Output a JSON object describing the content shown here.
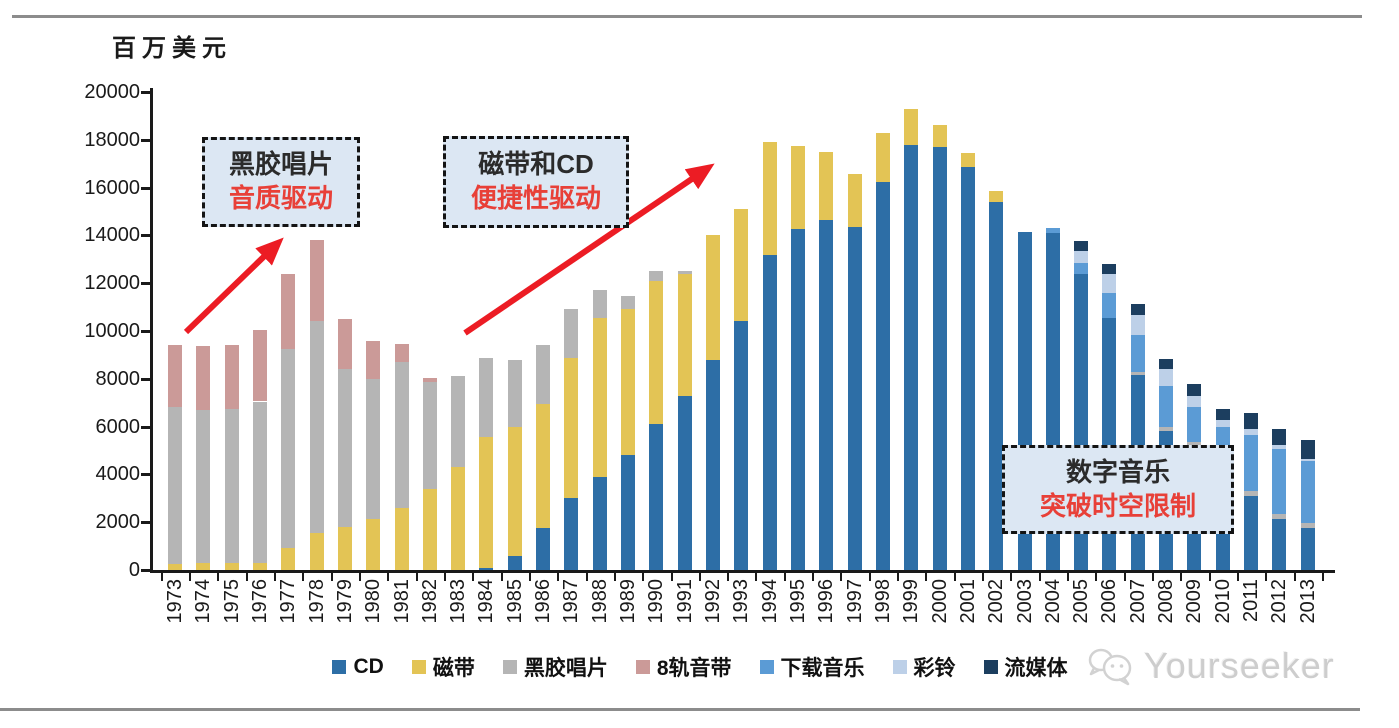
{
  "page": {
    "unit_label": "百万美元",
    "watermark": "Yourseeker"
  },
  "annotations": [
    {
      "line1": "黑胶唱片",
      "line2": "音质驱动"
    },
    {
      "line1": "磁带和CD",
      "line2": "便捷性驱动"
    },
    {
      "line1": "数字音乐",
      "line2": "突破时空限制"
    }
  ],
  "arrow_color": "#ec1c24",
  "chart_data": {
    "type": "bar",
    "stacked": true,
    "title": "",
    "xlabel": "",
    "ylabel": "百万美元",
    "ylim": [
      0,
      20000
    ],
    "ytick_step": 2000,
    "grid": false,
    "legend_position": "bottom",
    "categories": [
      "1973",
      "1974",
      "1975",
      "1976",
      "1977",
      "1978",
      "1979",
      "1980",
      "1981",
      "1982",
      "1983",
      "1984",
      "1985",
      "1986",
      "1987",
      "1988",
      "1989",
      "1990",
      "1991",
      "1992",
      "1993",
      "1994",
      "1995",
      "1996",
      "1997",
      "1998",
      "1999",
      "2000",
      "2001",
      "2002",
      "2003",
      "2004",
      "2005",
      "2006",
      "2007",
      "2008",
      "2009",
      "2010",
      "2011",
      "2012",
      "2013"
    ],
    "series": [
      {
        "name": "CD",
        "color": "#2d6ea6",
        "values": [
          0,
          0,
          0,
          0,
          0,
          0,
          0,
          0,
          0,
          0,
          0,
          100,
          600,
          1750,
          3000,
          3900,
          4800,
          6100,
          7300,
          8800,
          10400,
          13200,
          14250,
          14650,
          14350,
          16250,
          17800,
          17700,
          16850,
          15400,
          14150,
          14100,
          12400,
          10550,
          8150,
          5800,
          5200,
          3950,
          3100,
          2150,
          1750
        ]
      },
      {
        "name": "磁带",
        "color": "#e3c455",
        "values": [
          250,
          280,
          300,
          300,
          900,
          1550,
          1800,
          2150,
          2600,
          3400,
          4300,
          5450,
          5400,
          5200,
          5850,
          6650,
          6100,
          6000,
          5100,
          5200,
          4700,
          4700,
          3500,
          2850,
          2200,
          2050,
          1500,
          900,
          600,
          450,
          0,
          0,
          0,
          0,
          0,
          0,
          0,
          0,
          0,
          0,
          0
        ]
      },
      {
        "name": "黑胶唱片",
        "color": "#b5b5b5",
        "values": [
          6550,
          6400,
          6450,
          6750,
          8350,
          8850,
          6600,
          5850,
          6100,
          4450,
          3800,
          3300,
          2800,
          2450,
          2050,
          1150,
          550,
          400,
          100,
          0,
          0,
          0,
          0,
          0,
          0,
          0,
          0,
          0,
          0,
          0,
          0,
          0,
          0,
          0,
          150,
          170,
          150,
          170,
          200,
          210,
          200
        ]
      },
      {
        "name": "8轨音带",
        "color": "#cb9a98",
        "values": [
          2600,
          2700,
          2650,
          3000,
          3150,
          3400,
          2100,
          1600,
          750,
          200,
          0,
          0,
          0,
          0,
          0,
          0,
          0,
          0,
          0,
          0,
          0,
          0,
          0,
          0,
          0,
          0,
          0,
          0,
          0,
          0,
          0,
          0,
          0,
          0,
          0,
          0,
          0,
          0,
          0,
          0,
          0
        ]
      },
      {
        "name": "下载音乐",
        "color": "#5b9bd5",
        "values": [
          0,
          0,
          0,
          0,
          0,
          0,
          0,
          0,
          0,
          0,
          0,
          0,
          0,
          0,
          0,
          0,
          0,
          0,
          0,
          0,
          0,
          0,
          0,
          0,
          0,
          0,
          0,
          0,
          0,
          0,
          0,
          200,
          450,
          1050,
          1530,
          1740,
          1460,
          1880,
          2350,
          2700,
          2600
        ]
      },
      {
        "name": "彩铃",
        "color": "#bdd0e8",
        "values": [
          0,
          0,
          0,
          0,
          0,
          0,
          0,
          0,
          0,
          0,
          0,
          0,
          0,
          0,
          0,
          0,
          0,
          0,
          0,
          0,
          0,
          0,
          0,
          0,
          0,
          0,
          0,
          0,
          0,
          0,
          0,
          0,
          500,
          780,
          830,
          700,
          490,
          280,
          250,
          150,
          100
        ]
      },
      {
        "name": "流媒体",
        "color": "#1c3e5f",
        "values": [
          0,
          0,
          0,
          0,
          0,
          0,
          0,
          0,
          0,
          0,
          0,
          0,
          0,
          0,
          0,
          0,
          0,
          0,
          0,
          0,
          0,
          0,
          0,
          0,
          0,
          0,
          0,
          0,
          0,
          0,
          0,
          0,
          400,
          420,
          460,
          420,
          490,
          470,
          650,
          700,
          800
        ]
      }
    ]
  }
}
